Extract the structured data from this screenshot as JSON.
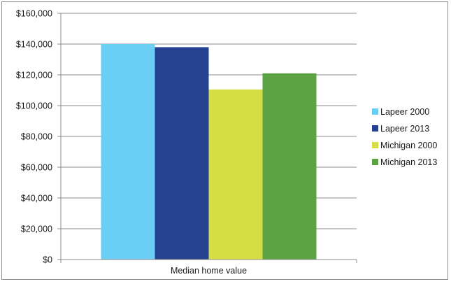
{
  "chart_data": {
    "type": "bar",
    "title": "",
    "xlabel": "",
    "ylabel": "",
    "categories": [
      "Median home value"
    ],
    "series": [
      {
        "name": "Lapeer 2000",
        "values": [
          140000
        ],
        "color": "#6bcff5"
      },
      {
        "name": "Lapeer 2013",
        "values": [
          138000
        ],
        "color": "#24428f"
      },
      {
        "name": "Michigan 2000",
        "values": [
          110500
        ],
        "color": "#d4de43"
      },
      {
        "name": "Michigan 2013",
        "values": [
          121000
        ],
        "color": "#5ba343"
      }
    ],
    "ylim": [
      0,
      160000
    ],
    "ytick_values": [
      0,
      20000,
      40000,
      60000,
      80000,
      100000,
      120000,
      140000,
      160000
    ],
    "ytick_labels": [
      "$0",
      "$20,000",
      "$40,000",
      "$60,000",
      "$80,000",
      "$100,000",
      "$120,000",
      "$140,000",
      "$160,000"
    ],
    "grid": true,
    "legend_position": "right"
  }
}
